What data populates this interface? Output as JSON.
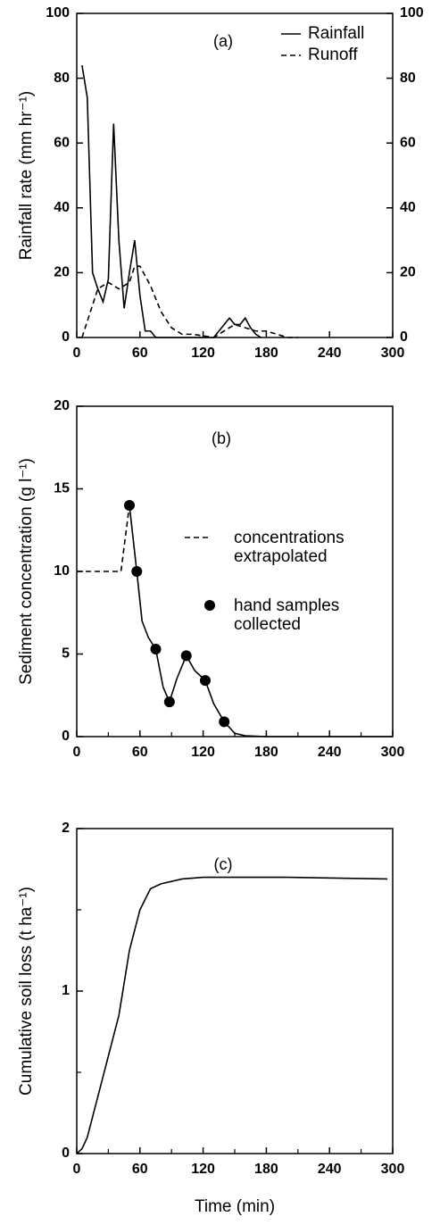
{
  "chart_data": [
    {
      "type": "line",
      "title": "(a)",
      "y_label": "Rainfall rate (mm hr⁻¹)",
      "xlim": [
        0,
        300
      ],
      "xticks": [
        0,
        60,
        120,
        180,
        240,
        300
      ],
      "ylim": [
        0,
        100
      ],
      "yticks": [
        0,
        20,
        40,
        60,
        80,
        100
      ],
      "y2lim": [
        0,
        100
      ],
      "y2ticks": [
        0,
        20,
        40,
        60,
        80,
        100
      ],
      "legend": "upper right",
      "series": [
        {
          "name": "Rainfall",
          "style": "solid",
          "color": "#000000",
          "x": [
            5,
            10,
            15,
            20,
            25,
            30,
            35,
            40,
            45,
            50,
            55,
            60,
            65,
            70,
            75,
            130,
            140,
            145,
            150,
            155,
            160,
            165,
            170,
            175
          ],
          "values": [
            84,
            74,
            20,
            15,
            11,
            18,
            66,
            30,
            9,
            20,
            30,
            13,
            2,
            2,
            0,
            0,
            4,
            6,
            4,
            4,
            6,
            3,
            1,
            0
          ]
        },
        {
          "name": "Runoff",
          "style": "dashed",
          "color": "#000000",
          "x": [
            5,
            10,
            20,
            30,
            40,
            50,
            55,
            60,
            70,
            80,
            90,
            100,
            110,
            130,
            140,
            150,
            160,
            170,
            180,
            190,
            200,
            210
          ],
          "values": [
            0,
            5,
            15,
            17,
            15,
            17,
            22,
            22,
            16,
            8,
            3,
            1,
            1,
            0,
            2,
            4,
            3,
            2,
            2,
            1,
            0,
            0
          ]
        }
      ]
    },
    {
      "type": "line",
      "title": "(b)",
      "y_label": "Sediment concentration (g l⁻¹)",
      "xlim": [
        0,
        300
      ],
      "xticks": [
        0,
        60,
        120,
        180,
        240,
        300
      ],
      "xminorticks": [
        30,
        90,
        150,
        210,
        270
      ],
      "ylim": [
        0,
        20
      ],
      "yticks": [
        0,
        5,
        10,
        15,
        20
      ],
      "series": [
        {
          "style": "solid",
          "color": "#000000",
          "x": [
            50,
            57,
            62,
            68,
            75,
            82,
            88,
            95,
            104,
            112,
            122,
            130,
            140,
            150,
            160,
            180,
            300
          ],
          "values": [
            14,
            10,
            7,
            6,
            5.3,
            3,
            2.1,
            3.5,
            4.9,
            4,
            3.4,
            2,
            0.9,
            0.2,
            0.05,
            0,
            0
          ]
        },
        {
          "name": "concentrations extrapolated",
          "style": "dashed",
          "color": "#000000",
          "x": [
            0,
            42,
            50
          ],
          "values": [
            10,
            10,
            14
          ]
        },
        {
          "name": "hand samples collected",
          "style": "markers",
          "color": "#000000",
          "x": [
            50,
            57,
            75,
            88,
            104,
            122,
            140
          ],
          "values": [
            14,
            10,
            5.3,
            2.1,
            4.9,
            3.4,
            0.9
          ]
        }
      ]
    },
    {
      "type": "line",
      "title": "(c)",
      "y_label": "Cumulative soil loss (t ha⁻¹)",
      "x_label": "Time (min)",
      "xlim": [
        0,
        300
      ],
      "xticks": [
        0,
        60,
        120,
        180,
        240,
        300
      ],
      "xminorticks": [
        30,
        90,
        150,
        210,
        270
      ],
      "ylim": [
        0,
        2
      ],
      "yticks": [
        0,
        1,
        2
      ],
      "yminorticks": [
        0.5,
        1.5
      ],
      "series": [
        {
          "style": "solid",
          "color": "#000000",
          "x": [
            0,
            5,
            10,
            20,
            30,
            40,
            50,
            60,
            70,
            80,
            100,
            120,
            200,
            295
          ],
          "values": [
            0,
            0.03,
            0.1,
            0.35,
            0.6,
            0.85,
            1.25,
            1.5,
            1.63,
            1.66,
            1.69,
            1.7,
            1.7,
            1.69
          ]
        }
      ]
    }
  ]
}
